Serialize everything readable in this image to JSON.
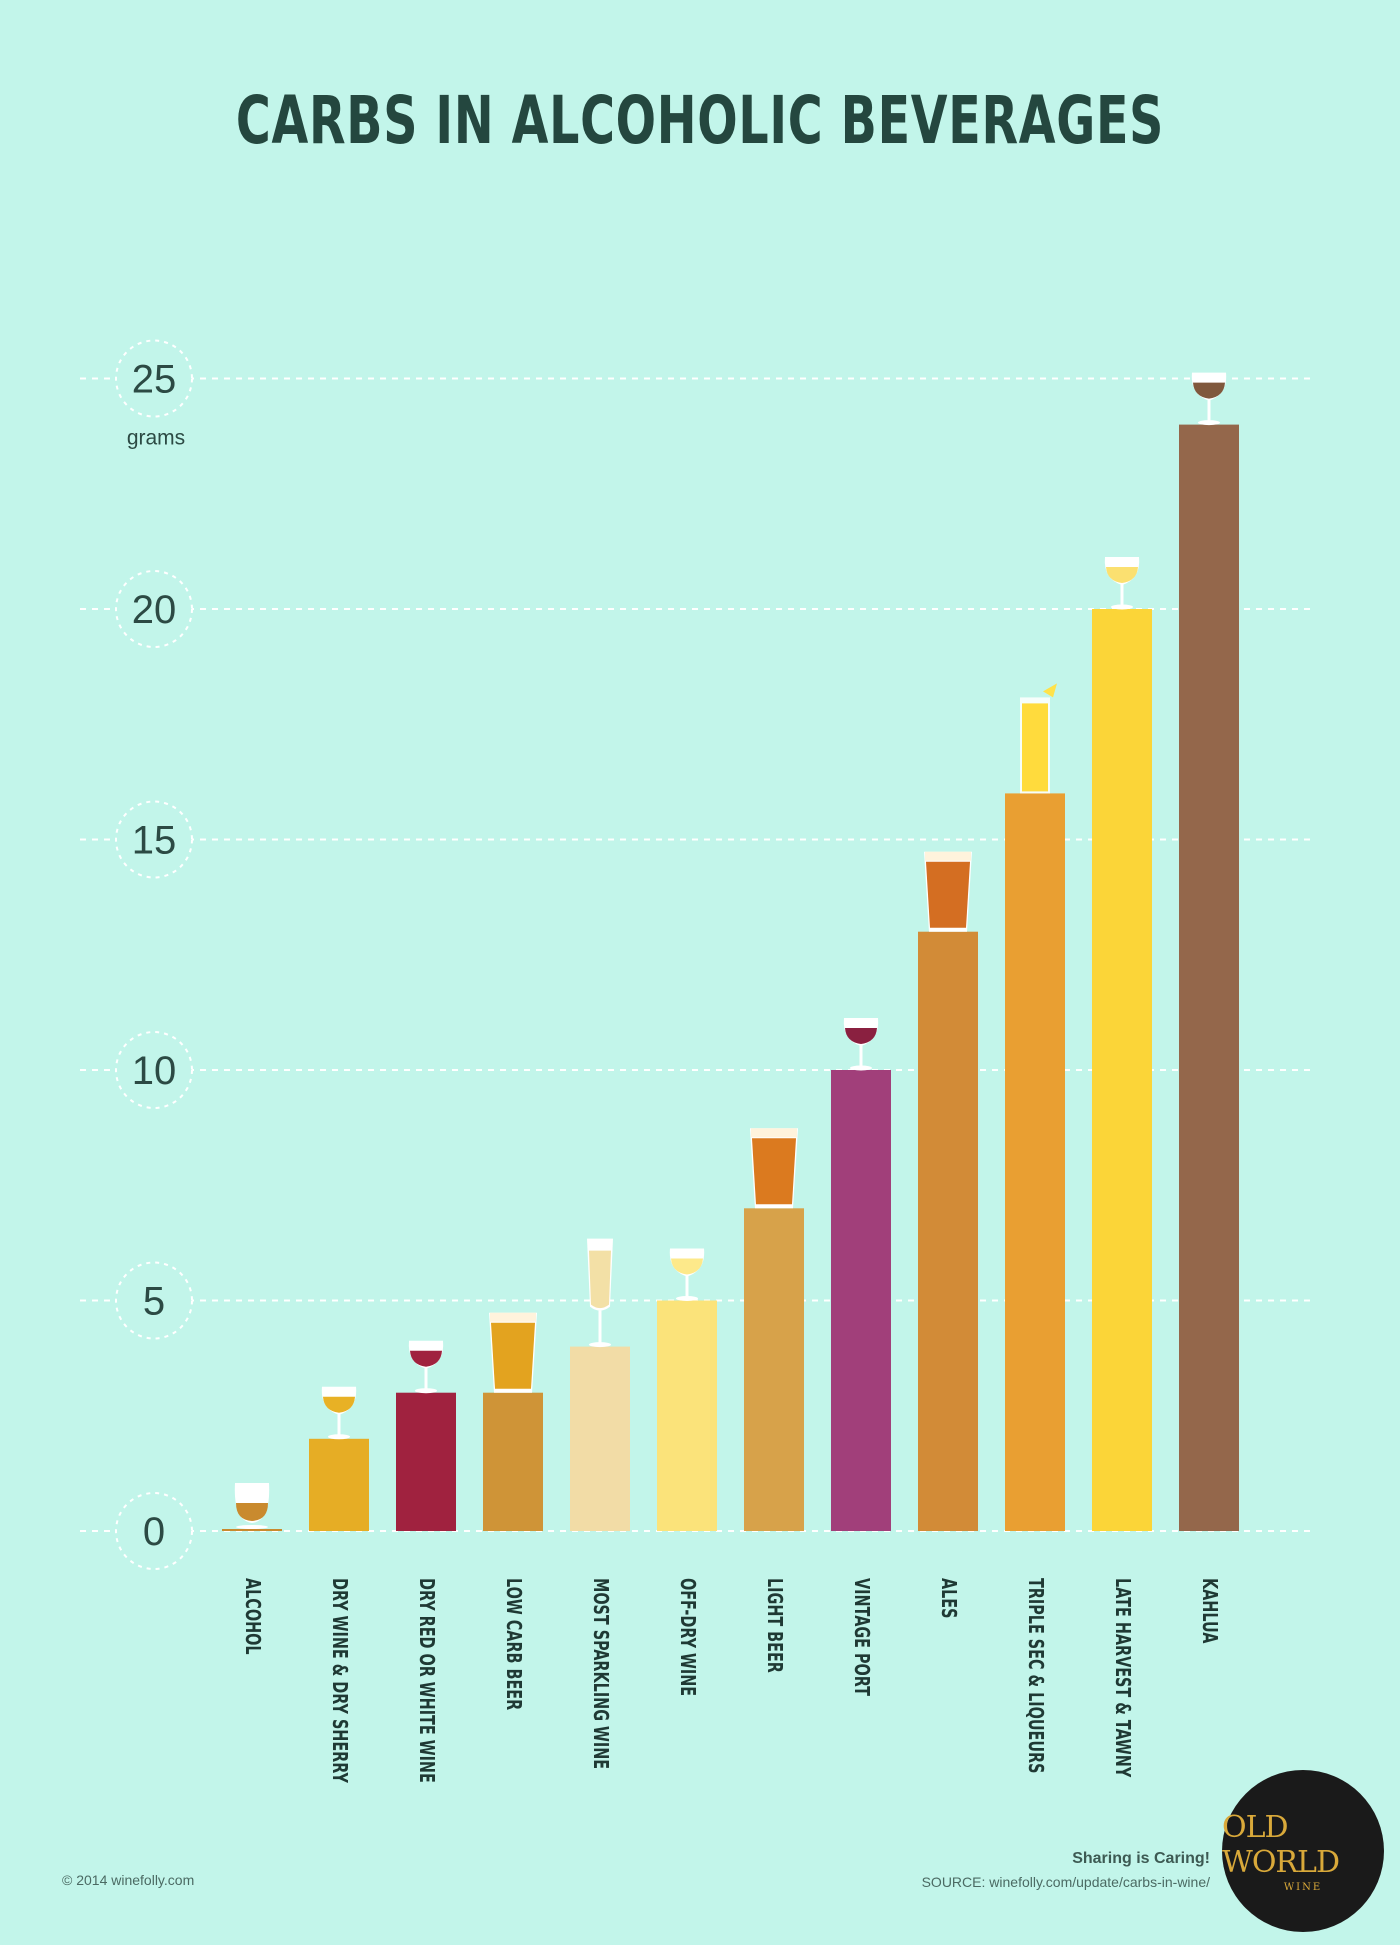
{
  "header": {
    "title": "CARBS IN ALCOHOLIC BEVERAGES"
  },
  "chart_data": {
    "type": "bar",
    "title": "CARBS IN ALCOHOLIC BEVERAGES",
    "ylabel": "grams",
    "xlabel": "",
    "ylim": [
      0,
      25
    ],
    "yticks": [
      0,
      5,
      10,
      15,
      20,
      25
    ],
    "grid": true,
    "categories": [
      "ALCOHOL",
      "DRY WINE & DRY SHERRY",
      "DRY RED OR WHITE WINE",
      "LOW CARB BEER",
      "MOST SPARKLING WINE",
      "OFF-DRY WINE",
      "LIGHT BEER",
      "VINTAGE PORT",
      "ALES",
      "TRIPLE SEC & LIQUEURS",
      "LATE HARVEST & TAWNY",
      "KAHLUA"
    ],
    "values": [
      0,
      2,
      3,
      3,
      4,
      5,
      7,
      10,
      13,
      16,
      20,
      24
    ],
    "colors": [
      "#c98a2e",
      "#e6ad25",
      "#a0223f",
      "#cf9437",
      "#f2dca6",
      "#fbe37a",
      "#d7a24a",
      "#a13f7a",
      "#d28b37",
      "#e99f32",
      "#fbd538",
      "#94674b"
    ],
    "glasses": [
      "tumbler",
      "wine-glass",
      "wine-glass",
      "beer-glass",
      "flute",
      "wine-glass",
      "beer-glass",
      "wine-glass",
      "beer-glass",
      "highball",
      "wine-glass",
      "wine-glass"
    ],
    "drink_colors": [
      "#c98a2e",
      "#e8b125",
      "#a0223f",
      "#e3a31f",
      "#f3e0a6",
      "#fde98a",
      "#db7a1f",
      "#8a2040",
      "#d46e22",
      "#ffdb3d",
      "#fbe070",
      "#80583d"
    ]
  },
  "footer": {
    "copyright": "© 2014 winefolly.com",
    "sharing": "Sharing is Caring!",
    "source": "SOURCE: winefolly.com/update/carbs-in-wine/",
    "logo_text": "OLD WORLD",
    "logo_sub": "WINE"
  }
}
